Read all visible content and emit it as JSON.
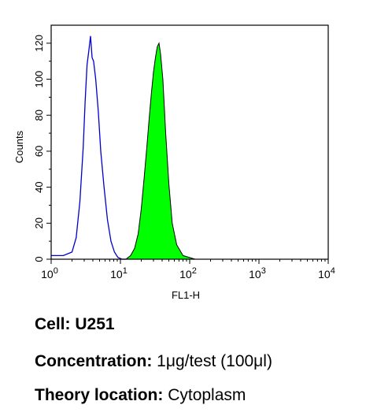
{
  "chart_data": {
    "type": "area",
    "title": "",
    "xlabel": "FL1-H",
    "ylabel": "Counts",
    "xscale": "log",
    "xlim": [
      1,
      10000
    ],
    "ylim": [
      0,
      130
    ],
    "x_tick_labels": [
      {
        "base": "10",
        "exp": "0"
      },
      {
        "base": "10",
        "exp": "1"
      },
      {
        "base": "10",
        "exp": "2"
      },
      {
        "base": "10",
        "exp": "3"
      },
      {
        "base": "10",
        "exp": "4"
      }
    ],
    "x_tick_values": [
      1,
      10,
      100,
      1000,
      10000
    ],
    "y_ticks": [
      0,
      20,
      40,
      60,
      80,
      100,
      120
    ],
    "y_tick_labels": [
      "0",
      "20",
      "40",
      "60",
      "80",
      "100",
      "120"
    ],
    "grid": false,
    "series": [
      {
        "style": "outline",
        "color": "#0000cc",
        "x": [
          1.0,
          1.5,
          2.0,
          2.3,
          2.6,
          2.9,
          3.1,
          3.3,
          3.5,
          3.7,
          3.9,
          4.1,
          4.4,
          4.8,
          5.2,
          5.8,
          6.5,
          7.3,
          8.2,
          9.2,
          10.5,
          12.0
        ],
        "y": [
          2,
          2,
          4,
          12,
          32,
          62,
          88,
          108,
          116,
          124,
          112,
          110,
          100,
          82,
          60,
          40,
          22,
          10,
          4,
          1,
          0,
          0
        ]
      },
      {
        "style": "filled",
        "color": "#00ff00",
        "x": [
          12,
          14,
          16,
          18,
          20,
          22,
          24,
          26,
          28,
          30,
          32,
          34,
          36,
          38,
          41,
          45,
          50,
          56,
          65,
          80,
          120
        ],
        "y": [
          0,
          2,
          6,
          14,
          28,
          45,
          62,
          78,
          92,
          104,
          112,
          118,
          120,
          114,
          100,
          70,
          42,
          20,
          8,
          2,
          0
        ]
      }
    ]
  },
  "captions": {
    "cell_label": "Cell:",
    "cell_value": "U251",
    "concentration_label": "Concentration:",
    "concentration_value": "1μg/test (100μl)",
    "location_label": "Theory location:",
    "location_value": "Cytoplasm"
  }
}
